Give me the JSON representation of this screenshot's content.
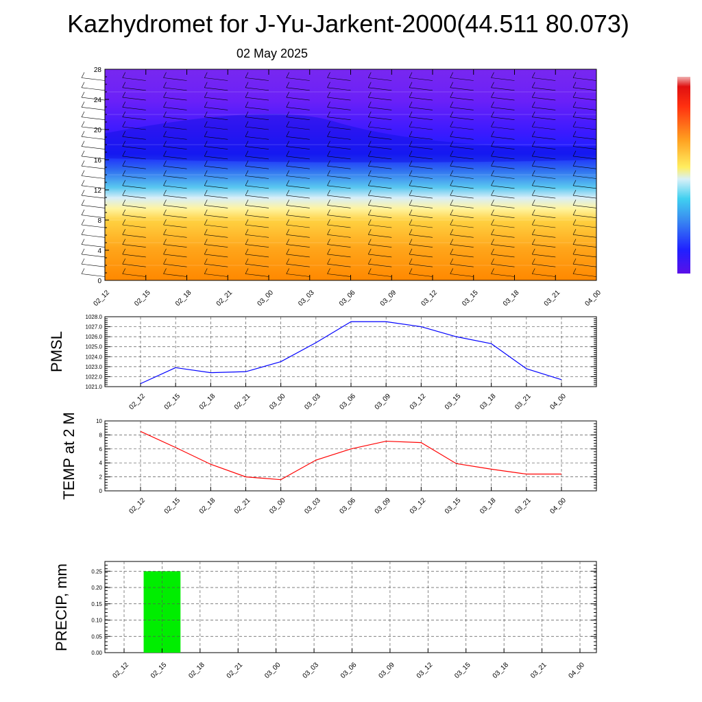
{
  "title": "Kazhydromet for J-Yu-Jarkent-2000(44.511 80.073)",
  "date": "02 May 2025",
  "colors": {
    "pmsl": "#0000ff",
    "temp": "#ff0000",
    "precip": "#00ee00"
  },
  "chart_data": [
    {
      "type": "heatmap",
      "title": "",
      "x": [
        "02_12",
        "02_15",
        "02_18",
        "02_21",
        "03_00",
        "03_03",
        "03_06",
        "03_09",
        "03_12",
        "03_15",
        "03_18",
        "03_21",
        "04_00"
      ],
      "y_ticks": [
        "0",
        "4",
        "8",
        "12",
        "16",
        "20",
        "24",
        "28"
      ],
      "ylim": [
        0,
        28
      ],
      "colorbar": "purple-blue-cyan-yellow-orange-red"
    },
    {
      "type": "line",
      "ylabel": "PMSL",
      "x": [
        "02_12",
        "02_15",
        "02_18",
        "02_21",
        "03_00",
        "03_03",
        "03_06",
        "03_09",
        "03_12",
        "03_15",
        "03_18",
        "03_21",
        "04_00"
      ],
      "values": [
        1021.3,
        1022.9,
        1022.4,
        1022.5,
        1023.5,
        1025.4,
        1027.5,
        1027.5,
        1027.0,
        1026.0,
        1025.3,
        1022.8,
        1021.7
      ],
      "ylim": [
        1021.0,
        1028.0
      ],
      "y_ticks": [
        "1021.0",
        "1022.0",
        "1023.0",
        "1024.0",
        "1025.0",
        "1026.0",
        "1027.0",
        "1028.0"
      ],
      "grid": true
    },
    {
      "type": "line",
      "ylabel": "TEMP at 2 M",
      "x": [
        "02_12",
        "02_15",
        "02_18",
        "02_21",
        "03_00",
        "03_03",
        "03_06",
        "03_09",
        "03_12",
        "03_15",
        "03_18",
        "03_21",
        "04_00"
      ],
      "values": [
        8.5,
        6.2,
        3.8,
        2.0,
        1.6,
        4.4,
        6.0,
        7.1,
        6.9,
        3.9,
        3.1,
        2.4,
        2.4
      ],
      "ylim": [
        0,
        10
      ],
      "y_ticks": [
        "0",
        "2",
        "4",
        "6",
        "8",
        "10"
      ],
      "grid": true
    },
    {
      "type": "bar",
      "ylabel": "PRECIP, mm",
      "x": [
        "02_12",
        "02_15",
        "02_18",
        "02_21",
        "03_00",
        "03_03",
        "03_06",
        "03_09",
        "03_12",
        "03_15",
        "03_18",
        "03_21",
        "04_00"
      ],
      "values": [
        0,
        0.25,
        0,
        0,
        0,
        0,
        0,
        0,
        0,
        0,
        0,
        0,
        0
      ],
      "ylim": [
        0,
        0.28
      ],
      "y_ticks": [
        "0.00",
        "0.05",
        "0.10",
        "0.15",
        "0.20",
        "0.25"
      ],
      "grid": true
    }
  ]
}
